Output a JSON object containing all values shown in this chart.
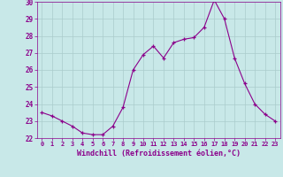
{
  "hours": [
    0,
    1,
    2,
    3,
    4,
    5,
    6,
    7,
    8,
    9,
    10,
    11,
    12,
    13,
    14,
    15,
    16,
    17,
    18,
    19,
    20,
    21,
    22,
    23
  ],
  "values": [
    23.5,
    23.3,
    23.0,
    22.7,
    22.3,
    22.2,
    22.2,
    22.7,
    23.8,
    26.0,
    26.9,
    27.4,
    26.7,
    27.6,
    27.8,
    27.9,
    28.5,
    30.1,
    29.0,
    26.7,
    25.2,
    24.0,
    23.4,
    23.0
  ],
  "line_color": "#8B008B",
  "marker": "+",
  "bg_color": "#c8e8e8",
  "grid_color": "#aacccc",
  "xlabel": "Windchill (Refroidissement éolien,°C)",
  "ylim": [
    22,
    30
  ],
  "yticks": [
    22,
    23,
    24,
    25,
    26,
    27,
    28,
    29,
    30
  ],
  "xticks": [
    0,
    1,
    2,
    3,
    4,
    5,
    6,
    7,
    8,
    9,
    10,
    11,
    12,
    13,
    14,
    15,
    16,
    17,
    18,
    19,
    20,
    21,
    22,
    23
  ],
  "tick_color": "#8B008B",
  "label_color": "#8B008B"
}
